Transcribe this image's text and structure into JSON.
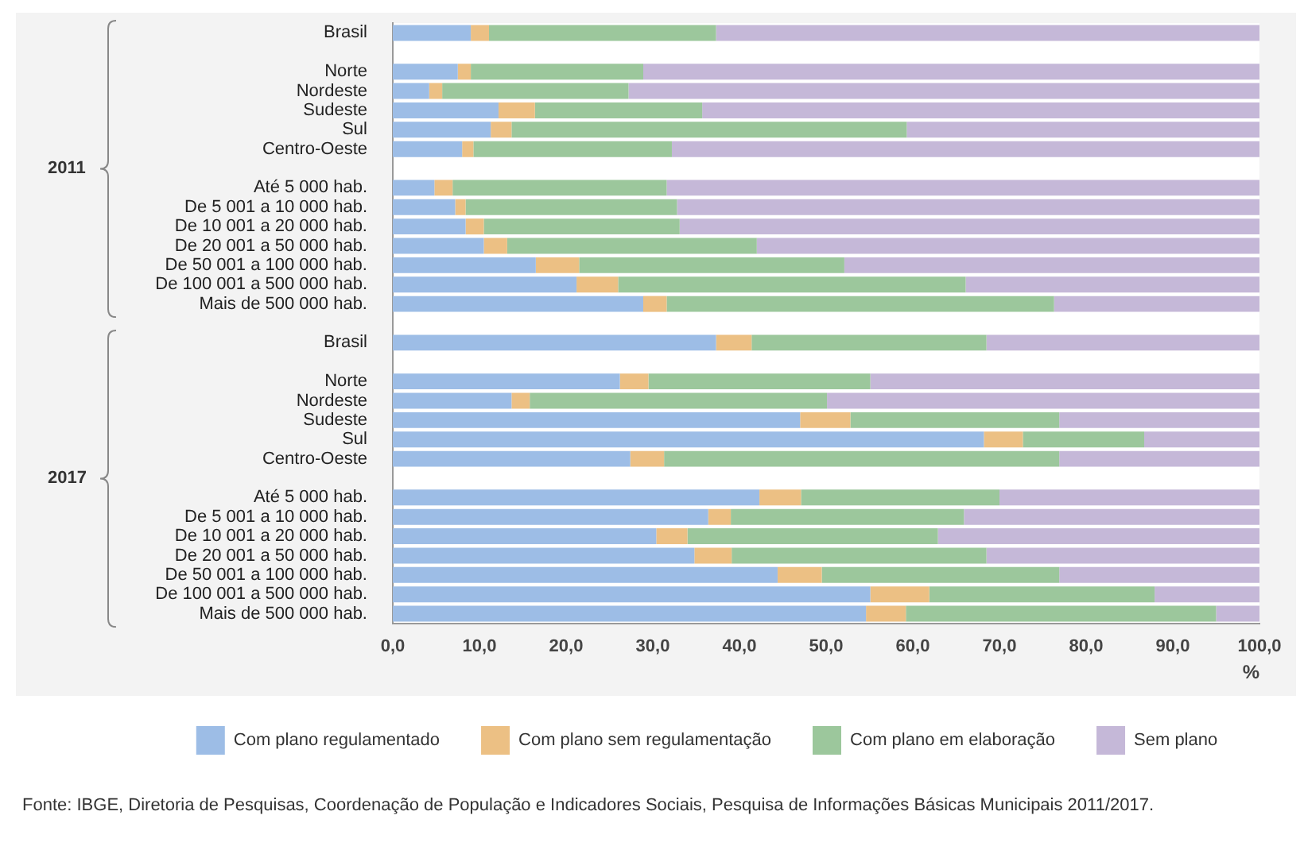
{
  "chart_data": {
    "type": "bar",
    "orientation": "horizontal",
    "stacked": true,
    "categories": [
      "Brasil",
      null,
      "Norte",
      "Nordeste",
      "Sudeste",
      "Sul",
      "Centro-Oeste",
      null,
      "Até 5 000 hab.",
      "De 5 001 a 10 000 hab.",
      "De 10 001 a 20 000 hab.",
      "De 20 001 a 50 000 hab.",
      "De 50 001 a 100 000 hab.",
      "De 100 001 a 500 000 hab.",
      "Mais de 500 000 hab.",
      null,
      "Brasil",
      null,
      "Norte",
      "Nordeste",
      "Sudeste",
      "Sul",
      "Centro-Oeste",
      null,
      "Até 5 000 hab.",
      "De 5 001 a 10 000 hab.",
      "De 10 001 a 20 000 hab.",
      "De 20 001 a 50 000 hab.",
      "De 50 001 a 100 000 hab.",
      "De 100 001 a 500 000 hab.",
      "Mais de 500 000 hab."
    ],
    "series": [
      {
        "name": "Com plano regulamentado",
        "color": "#9dbde6",
        "values": [
          9.0,
          null,
          7.5,
          4.2,
          12.2,
          11.3,
          8.0,
          null,
          4.8,
          7.2,
          8.4,
          10.5,
          16.5,
          21.2,
          28.9,
          null,
          37.3,
          null,
          26.2,
          13.7,
          47.0,
          68.2,
          27.4,
          null,
          42.3,
          36.4,
          30.4,
          34.8,
          44.4,
          55.1,
          54.6
        ]
      },
      {
        "name": "Com plano sem regulamentação",
        "color": "#ecc084",
        "values": [
          2.1,
          null,
          1.5,
          1.5,
          4.2,
          2.4,
          1.3,
          null,
          2.1,
          1.2,
          2.1,
          2.7,
          5.0,
          4.8,
          2.7,
          null,
          4.1,
          null,
          3.3,
          2.1,
          5.8,
          4.5,
          3.9,
          null,
          4.8,
          2.6,
          3.6,
          4.3,
          5.1,
          6.8,
          4.6
        ]
      },
      {
        "name": "Com plano em elaboração",
        "color": "#9cc79c",
        "values": [
          26.2,
          null,
          19.9,
          21.5,
          19.3,
          45.6,
          22.9,
          null,
          24.7,
          24.4,
          22.6,
          28.8,
          30.6,
          40.1,
          44.7,
          null,
          27.1,
          null,
          25.6,
          34.3,
          24.1,
          14.0,
          45.6,
          null,
          22.9,
          26.9,
          28.9,
          29.4,
          27.4,
          26.0,
          35.8
        ]
      },
      {
        "name": "Sem plano",
        "color": "#c5b8d8",
        "values": [
          62.7,
          null,
          71.1,
          72.8,
          64.3,
          40.7,
          67.8,
          null,
          68.4,
          67.2,
          66.9,
          58.0,
          47.9,
          33.9,
          23.7,
          null,
          31.5,
          null,
          44.9,
          49.9,
          23.1,
          13.3,
          23.1,
          null,
          30.0,
          34.1,
          37.1,
          31.5,
          23.1,
          12.1,
          5.0
        ]
      }
    ],
    "xlim": [
      0,
      100
    ],
    "xticks": [
      {
        "value": 0,
        "label": "0,0"
      },
      {
        "value": 10,
        "label": "10,0"
      },
      {
        "value": 20,
        "label": "20,0"
      },
      {
        "value": 30,
        "label": "30,0"
      },
      {
        "value": 40,
        "label": "40,0"
      },
      {
        "value": 50,
        "label": "50,0"
      },
      {
        "value": 60,
        "label": "60,0"
      },
      {
        "value": 70,
        "label": "70,0"
      },
      {
        "value": 80,
        "label": "80,0"
      },
      {
        "value": 90,
        "label": "90,0"
      },
      {
        "value": 100,
        "label": "100,0"
      }
    ],
    "xlabel": "%",
    "legend": "bottom",
    "annotations": [
      "2011",
      "2017",
      "Fonte: IBGE, Diretoria de Pesquisas, Coordenação de População e Indicadores Sociais, Pesquisa de Informações Básicas Municipais 2011/2017."
    ]
  }
}
